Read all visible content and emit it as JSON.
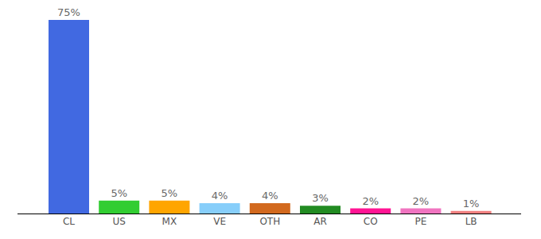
{
  "chart_data": {
    "type": "bar",
    "categories": [
      "CL",
      "US",
      "MX",
      "VE",
      "OTH",
      "AR",
      "CO",
      "PE",
      "LB"
    ],
    "values": [
      75,
      5,
      5,
      4,
      4,
      3,
      2,
      2,
      1
    ],
    "value_labels": [
      "75%",
      "5%",
      "5%",
      "4%",
      "4%",
      "3%",
      "2%",
      "2%",
      "1%"
    ],
    "colors": [
      "#4169e1",
      "#32cd32",
      "#ffa500",
      "#87cefa",
      "#d2691e",
      "#228b22",
      "#ff1493",
      "#f074c0",
      "#f08080"
    ],
    "ylim": [
      0,
      75
    ],
    "data_labels": true,
    "tick_labels": "x"
  }
}
